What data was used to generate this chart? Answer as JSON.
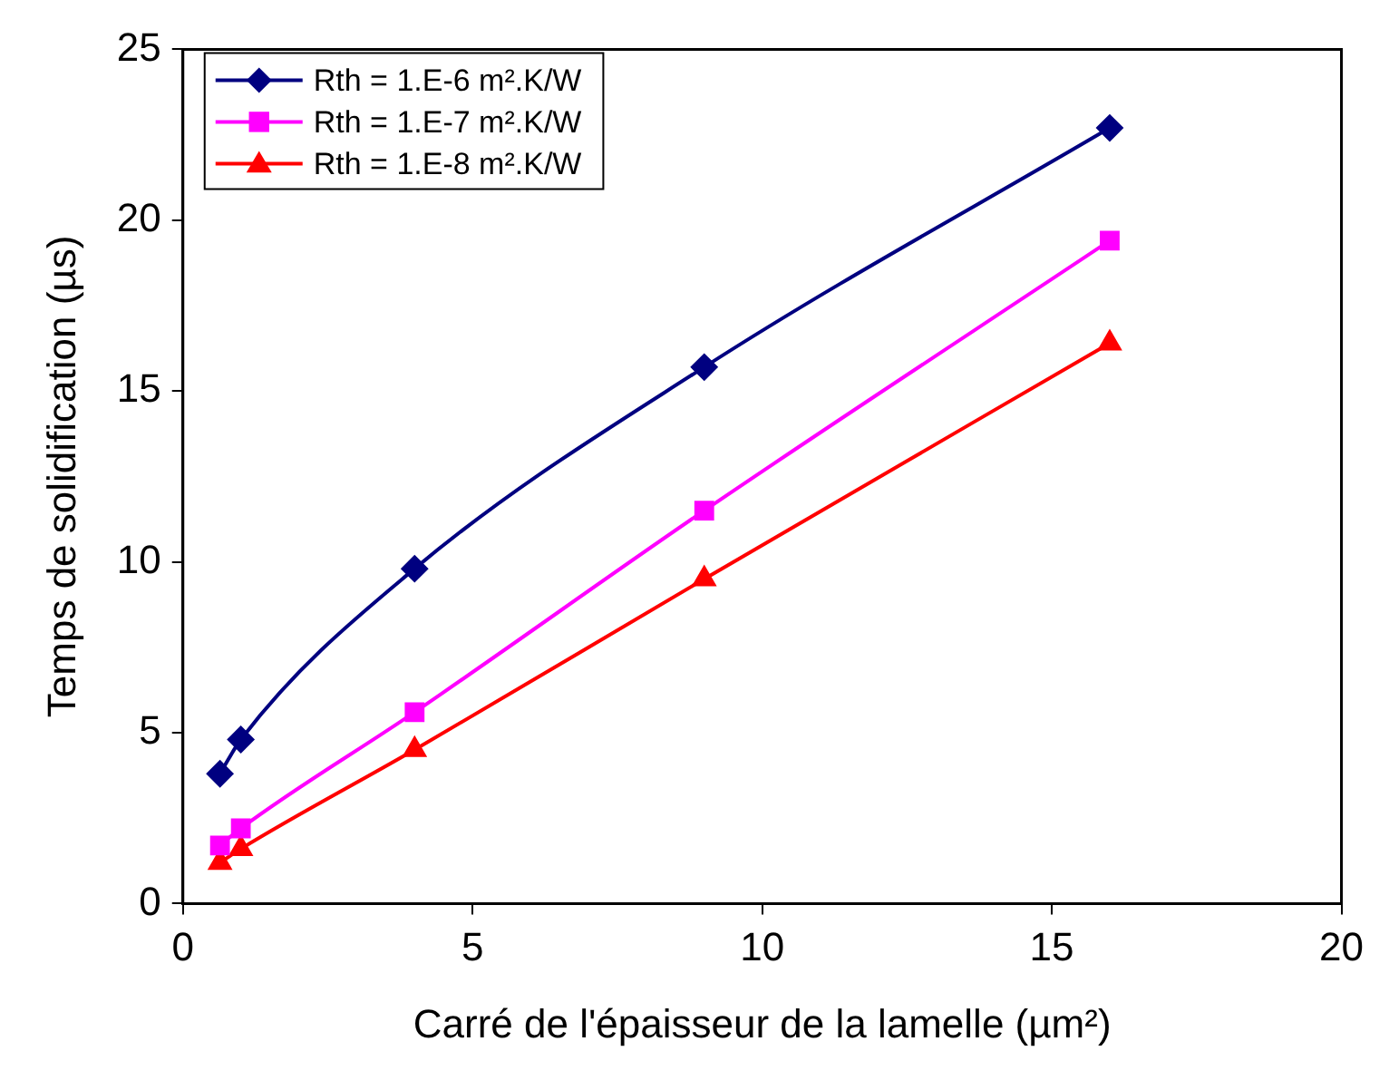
{
  "chart_data": {
    "type": "line",
    "xlabel": "Carré de l'épaisseur de la lamelle (µm²)",
    "ylabel": "Temps de solidification (µs)",
    "xlim": [
      0,
      20
    ],
    "xticks": [
      0,
      5,
      10,
      15,
      20
    ],
    "ylim": [
      0,
      25
    ],
    "yticks": [
      0,
      5,
      10,
      15,
      20,
      25
    ],
    "grid": false,
    "legend": "top left",
    "x": [
      0.64,
      1,
      4,
      9,
      16
    ],
    "series": [
      {
        "name": "Rth = 1.E-6 m².K/W",
        "color": "#000080",
        "marker": "diamond",
        "values": [
          3.8,
          4.8,
          9.8,
          15.7,
          22.7
        ]
      },
      {
        "name": "Rth = 1.E-7 m².K/W",
        "color": "#ff00ff",
        "marker": "square",
        "values": [
          1.7,
          2.2,
          5.6,
          11.5,
          19.4
        ]
      },
      {
        "name": "Rth = 1.E-8 m².K/W",
        "color": "#ff0000",
        "marker": "triangle",
        "values": [
          1.2,
          1.6,
          4.5,
          9.5,
          16.4
        ]
      }
    ]
  }
}
